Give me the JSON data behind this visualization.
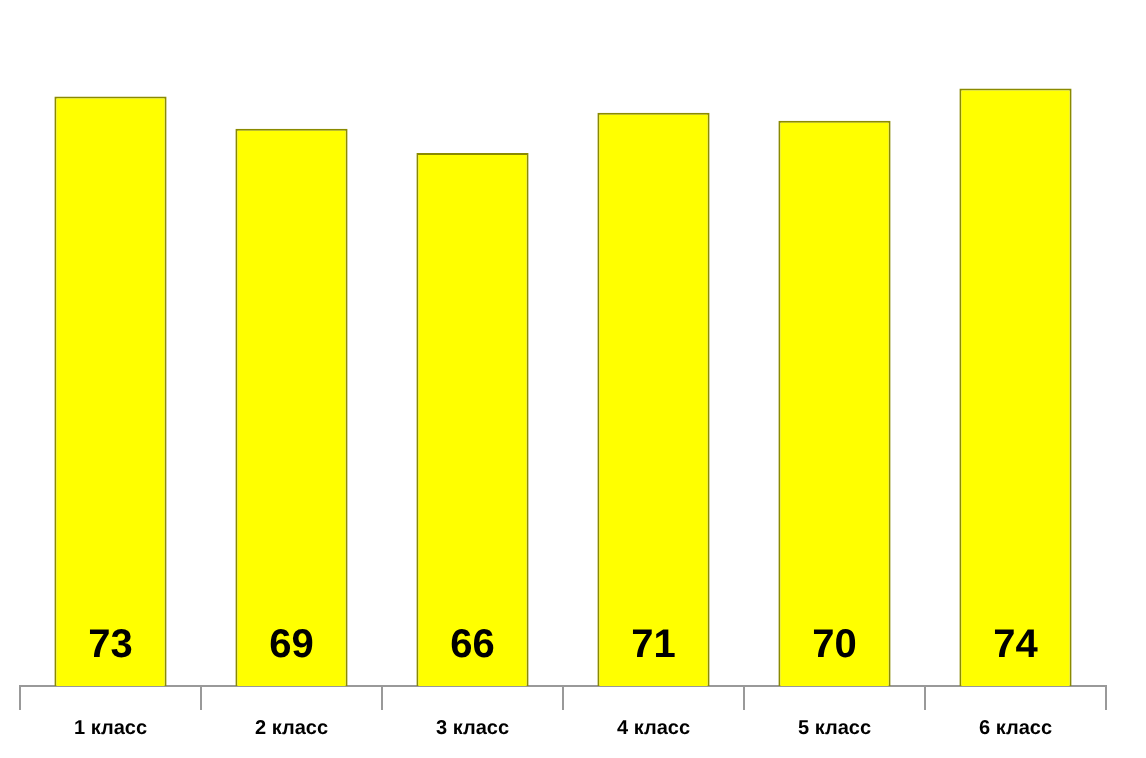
{
  "chart_data": {
    "type": "bar",
    "categories": [
      "1 класс",
      "2 класс",
      "3 класс",
      "4 класс",
      "5 класс",
      "6 класс"
    ],
    "values": [
      73,
      69,
      66,
      71,
      70,
      74
    ],
    "color": "#ffff00",
    "tick_labels": "x",
    "grid": false,
    "legend": false,
    "data_labels": true
  }
}
